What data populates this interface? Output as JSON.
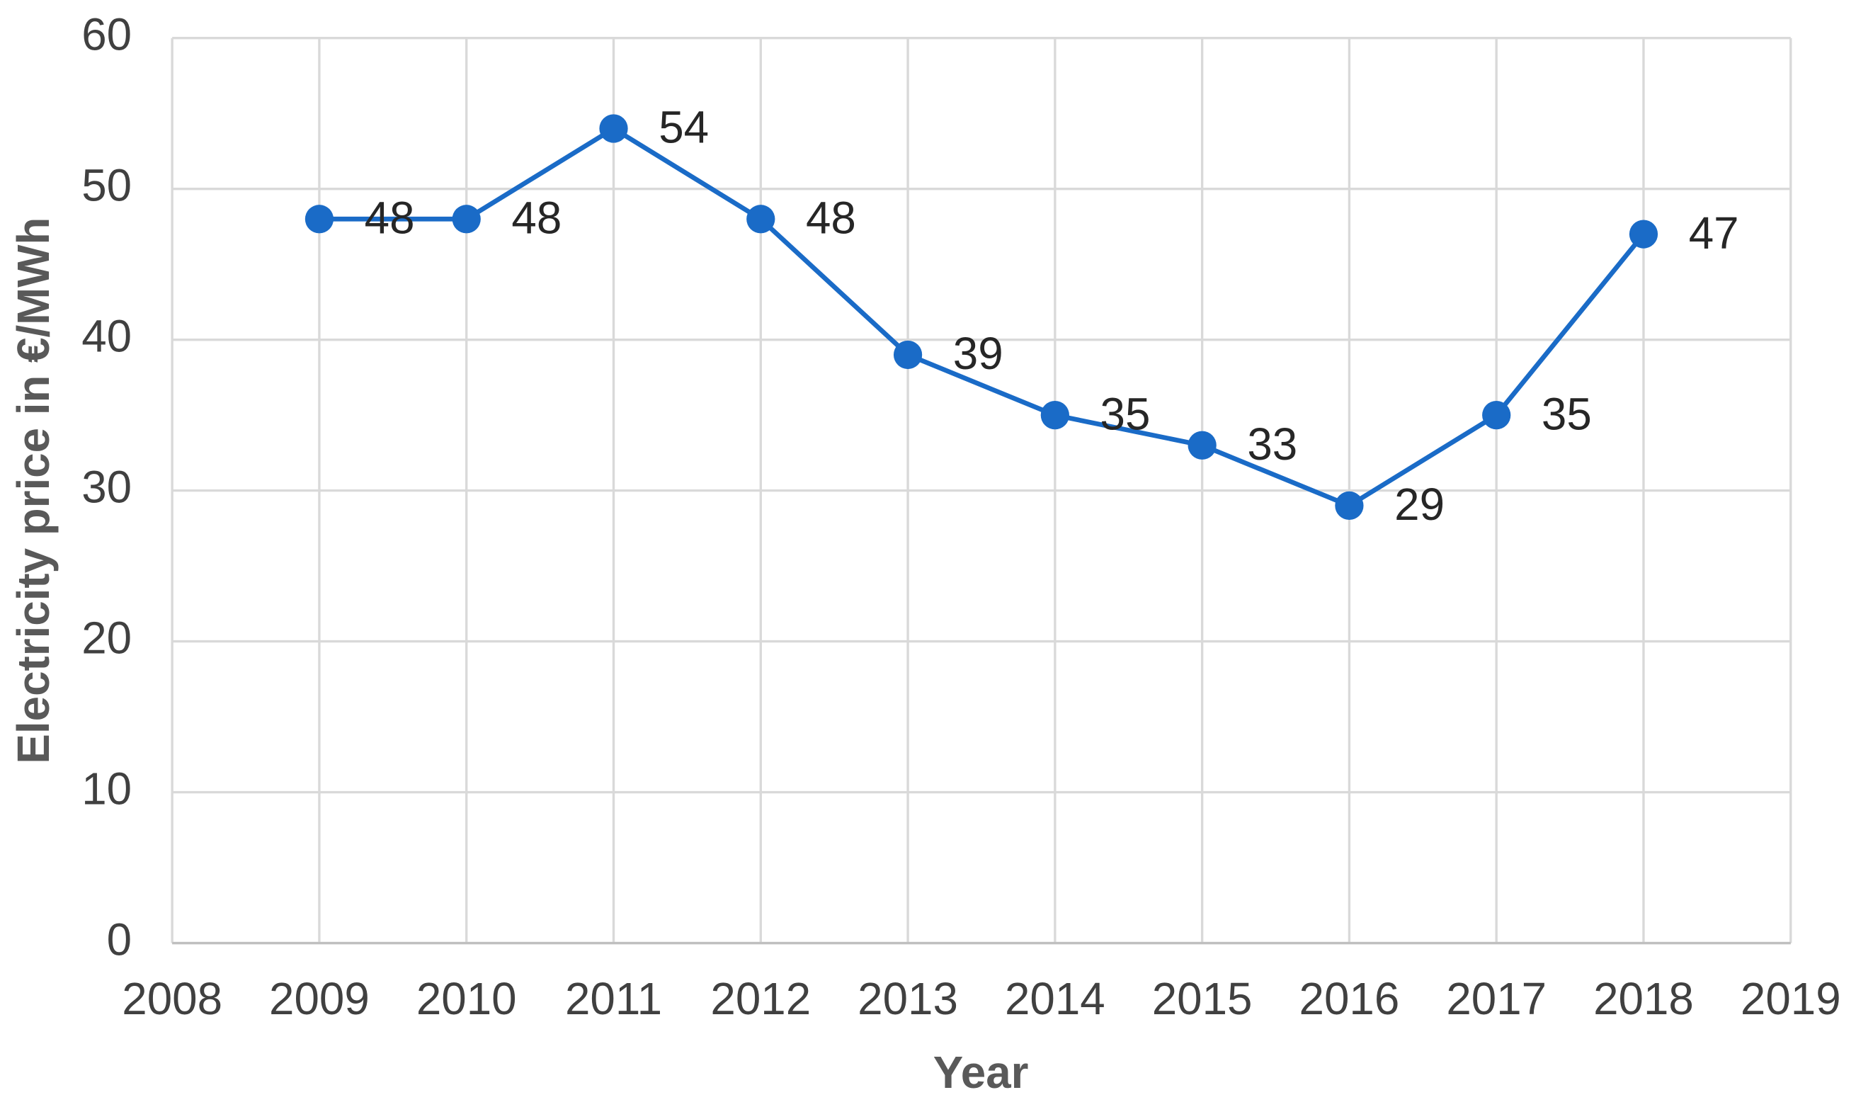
{
  "chart_data": {
    "type": "line",
    "x_label": "Year",
    "y_label": "Electricity price in €/MWh",
    "x": [
      2009,
      2010,
      2011,
      2012,
      2013,
      2014,
      2015,
      2016,
      2017,
      2018
    ],
    "series": [
      {
        "color": "#1a6bc7",
        "values": [
          48,
          48,
          54,
          48,
          39,
          35,
          33,
          29,
          35,
          47
        ]
      }
    ],
    "xlim": [
      2008,
      2019
    ],
    "xticks": [
      2008,
      2009,
      2010,
      2011,
      2012,
      2013,
      2014,
      2015,
      2016,
      2017,
      2018,
      2019
    ],
    "ylim": [
      0,
      60
    ],
    "yticks": [
      0,
      10,
      20,
      30,
      40,
      50,
      60
    ],
    "grid": true,
    "data_labels": true
  }
}
